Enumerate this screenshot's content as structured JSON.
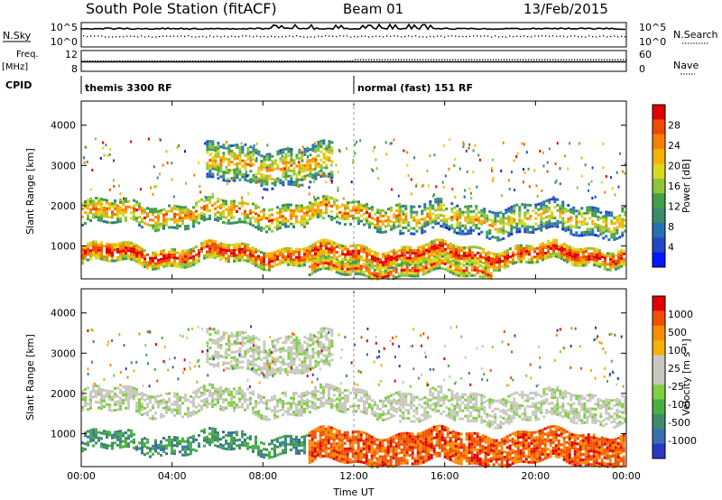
{
  "header": {
    "station": "South Pole Station (fitACF)",
    "beam": "Beam 01",
    "date": "13/Feb/2015"
  },
  "strips": {
    "nsky_label": "N.Sky",
    "nsky_ticks": [
      "10^5",
      "10^0"
    ],
    "nsearch_label": "N.Search",
    "nsearch_ticks": [
      "10^5",
      "10^0"
    ],
    "freq_label_1": "Freq.",
    "freq_label_2": "[MHz]",
    "freq_ticks": [
      "12",
      "8"
    ],
    "nave_label": "Nave",
    "nave_ticks": [
      "60",
      "0"
    ],
    "cpid_label": "CPID",
    "cpid_segments": [
      {
        "start_hour": 0,
        "label": "themis 3300 RF"
      },
      {
        "start_hour": 12,
        "label": "normal (fast) 151 RF"
      }
    ]
  },
  "chart_data": [
    {
      "type": "heatmap",
      "quantity": "power",
      "xlabel": "",
      "ylabel": "Slant Range [km]",
      "xlim": [
        0,
        24
      ],
      "ylim": [
        180,
        4600
      ],
      "yticks": [
        "1000",
        "2000",
        "3000",
        "4000"
      ],
      "colorbar": {
        "label": "Power [dB]",
        "ticks": [
          "4",
          "8",
          "12",
          "16",
          "20",
          "24",
          "28"
        ],
        "range": [
          0,
          32
        ],
        "colors": [
          "#0018ff",
          "#2248c8",
          "#2870b4",
          "#3c8a6c",
          "#44a048",
          "#8cc43c",
          "#d8d820",
          "#f8b000",
          "#f88000",
          "#f04a00",
          "#e00000"
        ]
      },
      "bands": [
        {
          "range_km": [
            1550,
            2150
          ],
          "level": 0.55,
          "t_end": 14
        },
        {
          "range_km": [
            1350,
            2050
          ],
          "level": 0.35,
          "t_start": 14
        },
        {
          "range_km": [
            600,
            1050
          ],
          "level": 0.8
        },
        {
          "range_km": [
            2600,
            3500
          ],
          "level": 0.4,
          "t_start": 5.5,
          "t_end": 11
        },
        {
          "range_km": [
            300,
            600
          ],
          "level": 0.7,
          "t_start": 10,
          "t_end": 18
        }
      ]
    },
    {
      "type": "heatmap",
      "quantity": "velocity",
      "xlabel": "Time UT",
      "ylabel": "Slant Range [km]",
      "xlim": [
        0,
        24
      ],
      "ylim": [
        180,
        4600
      ],
      "xticks": [
        "00:00",
        "04:00",
        "08:00",
        "12:00",
        "16:00",
        "20:00",
        "00:00"
      ],
      "yticks": [
        "1000",
        "2000",
        "3000",
        "4000"
      ],
      "colorbar": {
        "label": "Velocity [m s⁻¹]",
        "ticks": [
          "1000",
          "500",
          "100",
          "25",
          "-25",
          "-100",
          "-500",
          "-1000"
        ],
        "colors": [
          "#2838c8",
          "#3c6cb0",
          "#3c8c6c",
          "#48b040",
          "#80d040",
          "#c8c8c0",
          "#c8c8c0",
          "#f8b000",
          "#f88c00",
          "#f05000",
          "#e00000"
        ]
      },
      "bands": [
        {
          "range_km": [
            1550,
            2150
          ],
          "level": 0.5,
          "t_end": 14
        },
        {
          "range_km": [
            1350,
            2050
          ],
          "level": 0.5,
          "t_start": 14
        },
        {
          "range_km": [
            600,
            1050
          ],
          "level": 0.25,
          "t_end": 10
        },
        {
          "range_km": [
            300,
            1050
          ],
          "level": 0.85,
          "t_start": 10
        },
        {
          "range_km": [
            2600,
            3500
          ],
          "level": 0.5,
          "t_start": 5.5,
          "t_end": 11
        }
      ]
    }
  ]
}
